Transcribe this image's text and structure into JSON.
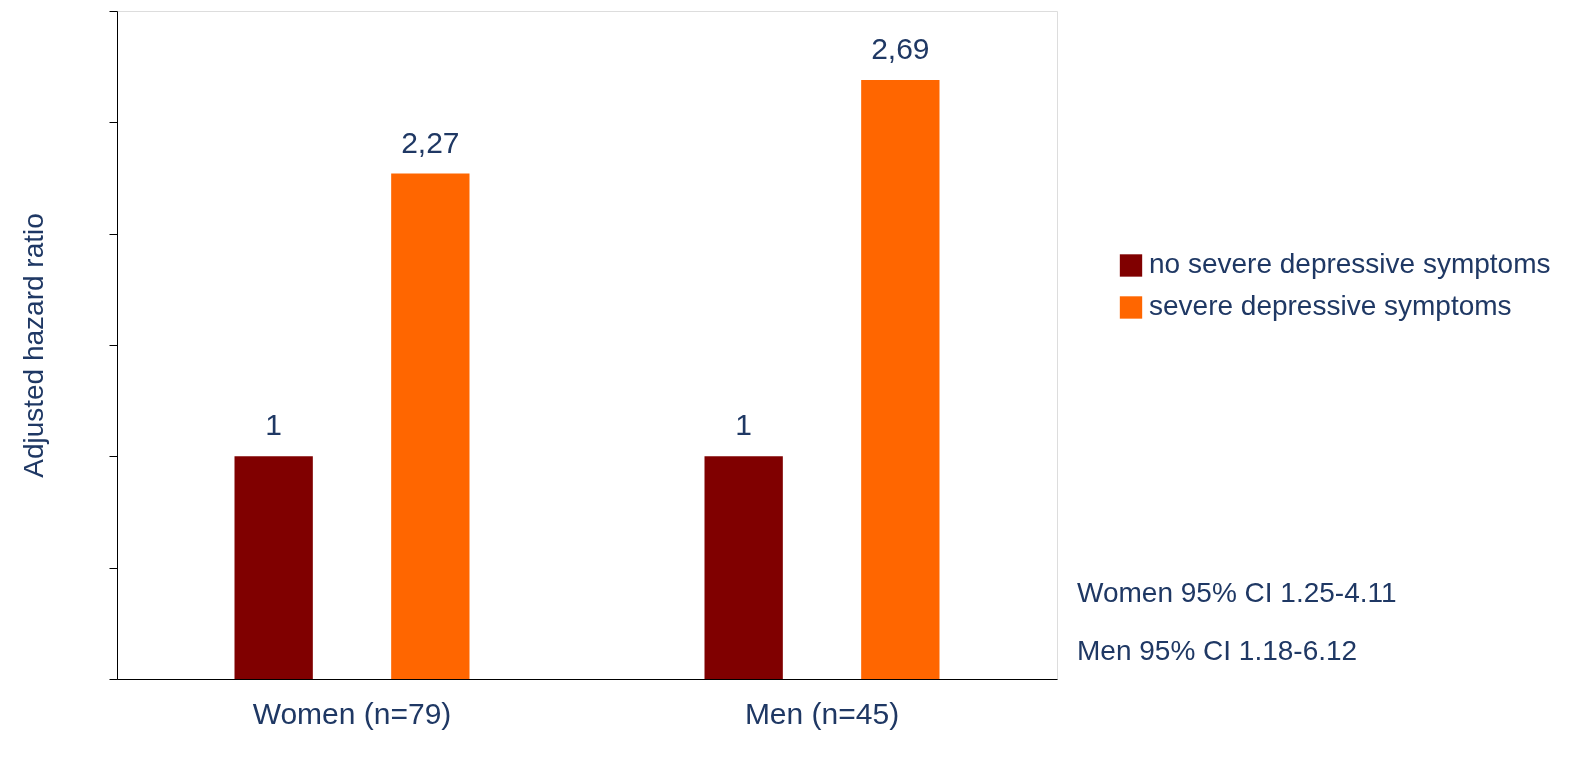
{
  "chart_data": {
    "type": "bar",
    "ylabel": "Adjusted hazard ratio",
    "categories": [
      "Women (n=79)",
      "Men (n=45)"
    ],
    "series": [
      {
        "name": "no severe depressive symptoms",
        "color": "#800000",
        "values": [
          1,
          1
        ],
        "value_labels": [
          "1",
          "1"
        ]
      },
      {
        "name": "severe depressive symptoms",
        "color": "#ff6600",
        "values": [
          2.27,
          2.69
        ],
        "value_labels": [
          "2,27",
          "2,69"
        ]
      }
    ],
    "ylim": [
      0,
      3
    ],
    "yticks": [
      {
        "value": 0,
        "label": null
      },
      {
        "value": 0.5,
        "label": null
      },
      {
        "value": 1,
        "label": null
      },
      {
        "value": 1.5,
        "label": null
      },
      {
        "value": 2,
        "label": null
      },
      {
        "value": 2.5,
        "label": null
      },
      {
        "value": 3,
        "label": null
      }
    ],
    "tick_labels": "x",
    "grid": false,
    "legend": "right",
    "annotations": [
      "Women 95% CI 1.25-4.11",
      "Men      95% CI 1.18-6.12"
    ]
  }
}
